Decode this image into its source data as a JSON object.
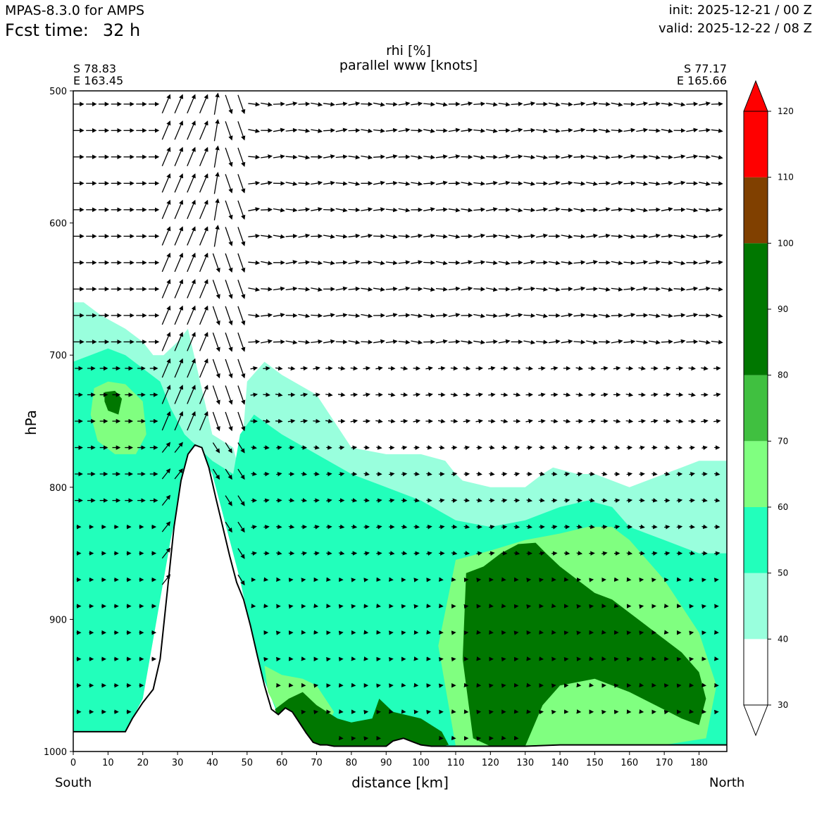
{
  "header": {
    "model": "MPAS-8.3.0 for AMPS",
    "fcst_label": "Fcst time:",
    "fcst_value": "32 h",
    "init": "init: 2025-12-21 / 00 Z",
    "valid": "valid: 2025-12-22 / 08 Z"
  },
  "cross_section": {
    "left_lat": "S 78.83",
    "left_lon": "E 163.45",
    "right_lat": "S 77.17",
    "right_lon": "E 165.66",
    "left_end": "South",
    "right_end": "North"
  },
  "chart_data": {
    "type": "heatmap",
    "title": "rhi [%]",
    "subtitle": "parallel www [knots]",
    "xlabel": "distance [km]",
    "ylabel": "hPa",
    "xlim": [
      0,
      188
    ],
    "ylim": [
      1000,
      500
    ],
    "x_ticks": [
      0,
      10,
      20,
      30,
      40,
      50,
      60,
      70,
      80,
      90,
      100,
      110,
      120,
      130,
      140,
      150,
      160,
      170,
      180
    ],
    "y_ticks": [
      500,
      600,
      700,
      800,
      900,
      1000
    ],
    "colorbar": {
      "ticks": [
        30,
        40,
        50,
        60,
        70,
        80,
        90,
        100,
        110,
        120
      ],
      "levels": [
        {
          "from": 30,
          "to": 40,
          "color": "#ffffff"
        },
        {
          "from": 40,
          "to": 50,
          "color": "#99ffdd"
        },
        {
          "from": 50,
          "to": 60,
          "color": "#22ffbb"
        },
        {
          "from": 60,
          "to": 70,
          "color": "#80ff80"
        },
        {
          "from": 70,
          "to": 80,
          "color": "#40c040"
        },
        {
          "from": 80,
          "to": 100,
          "color": "#007700"
        },
        {
          "from": 100,
          "to": 110,
          "color": "#804000"
        },
        {
          "from": 110,
          "to": 120,
          "color": "#ff0000"
        }
      ]
    },
    "terrain": {
      "x": [
        0,
        15,
        17,
        20,
        23,
        25,
        27,
        29,
        31,
        33,
        35,
        37,
        39,
        41,
        43,
        45,
        47,
        49,
        51,
        53,
        55,
        57,
        59,
        61,
        63,
        65,
        67,
        69,
        71,
        73,
        75,
        90,
        92,
        95,
        98,
        100,
        103,
        110,
        120,
        130,
        140,
        150,
        160,
        170,
        180,
        188
      ],
      "p": [
        985,
        985,
        975,
        963,
        953,
        930,
        880,
        830,
        795,
        775,
        768,
        770,
        785,
        808,
        830,
        852,
        872,
        885,
        905,
        928,
        950,
        968,
        972,
        967,
        970,
        978,
        986,
        993,
        995,
        995,
        996,
        996,
        992,
        990,
        993,
        995,
        996,
        996,
        996,
        996,
        995,
        995,
        995,
        995,
        995,
        995
      ]
    },
    "rhi_regions": [
      {
        "level": 40,
        "x": [
          0,
          3,
          8,
          15,
          20,
          23,
          26,
          30,
          33,
          40,
          46,
          48,
          50,
          55,
          60,
          70,
          80,
          90,
          100,
          107,
          110,
          112,
          120,
          130,
          135,
          138,
          145,
          150,
          155,
          160,
          165,
          170,
          175,
          180,
          188,
          188,
          180,
          160,
          140,
          120,
          110,
          100,
          90,
          80,
          70,
          60,
          52,
          48,
          40,
          36,
          32,
          28,
          24,
          20,
          15,
          10,
          5,
          0
        ],
        "p": [
          660,
          660,
          670,
          680,
          690,
          700,
          700,
          690,
          680,
          760,
          770,
          790,
          720,
          705,
          715,
          730,
          770,
          775,
          775,
          780,
          790,
          795,
          800,
          800,
          790,
          785,
          790,
          790,
          795,
          800,
          795,
          790,
          785,
          780,
          780,
          995,
          995,
          995,
          995,
          996,
          996,
          996,
          996,
          996,
          995,
          975,
          930,
          870,
          790,
          770,
          780,
          820,
          900,
          960,
          985,
          985,
          985,
          985
        ]
      },
      {
        "level": 50,
        "x": [
          0,
          5,
          10,
          15,
          20,
          25,
          28,
          32,
          40,
          46,
          48,
          52,
          60,
          70,
          80,
          90,
          100,
          110,
          120,
          130,
          140,
          148,
          155,
          160,
          165,
          170,
          175,
          180,
          188,
          188,
          180,
          160,
          140,
          120,
          110,
          100,
          90,
          80,
          70,
          60,
          54,
          48,
          40,
          36,
          32,
          28,
          24,
          20,
          15,
          10,
          5,
          0
        ],
        "p": [
          705,
          700,
          695,
          700,
          710,
          720,
          740,
          760,
          780,
          790,
          760,
          745,
          760,
          775,
          790,
          800,
          810,
          825,
          830,
          825,
          815,
          810,
          815,
          830,
          835,
          840,
          845,
          850,
          850,
          995,
          995,
          995,
          995,
          996,
          996,
          996,
          996,
          996,
          995,
          980,
          940,
          870,
          790,
          770,
          790,
          840,
          900,
          960,
          985,
          985,
          985,
          985
        ]
      },
      {
        "level": 60,
        "x": [
          110,
          120,
          130,
          140,
          148,
          155,
          160,
          165,
          170,
          175,
          180,
          185,
          182,
          170,
          160,
          150,
          140,
          130,
          120,
          110,
          105
        ],
        "p": [
          855,
          848,
          840,
          835,
          830,
          830,
          840,
          855,
          870,
          890,
          910,
          950,
          990,
          995,
          995,
          995,
          995,
          996,
          996,
          996,
          920
        ]
      },
      {
        "level": 60,
        "x": [
          6,
          10,
          15,
          20,
          21,
          18,
          12,
          7,
          5
        ],
        "p": [
          725,
          720,
          722,
          735,
          760,
          775,
          775,
          765,
          745
        ]
      },
      {
        "level": 60,
        "x": [
          55,
          60,
          66,
          70,
          75,
          72,
          68,
          64,
          60,
          56
        ],
        "p": [
          935,
          942,
          945,
          950,
          970,
          985,
          990,
          985,
          975,
          955
        ]
      },
      {
        "level": 80,
        "x": [
          113,
          118,
          123,
          128,
          133,
          136,
          140,
          145,
          150,
          155,
          160,
          165,
          170,
          175,
          180,
          182,
          180,
          175,
          160,
          150,
          140,
          135,
          130,
          125,
          120,
          115,
          112
        ],
        "p": [
          865,
          860,
          850,
          843,
          842,
          850,
          860,
          870,
          880,
          885,
          895,
          905,
          915,
          925,
          940,
          960,
          980,
          975,
          955,
          945,
          950,
          965,
          996,
          996,
          996,
          990,
          930
        ]
      },
      {
        "level": 80,
        "x": [
          58,
          62,
          66,
          70,
          76,
          80,
          86,
          88,
          92,
          100,
          106,
          108,
          106,
          100,
          92,
          86,
          80,
          74,
          70,
          66,
          62,
          59
        ],
        "p": [
          968,
          960,
          955,
          965,
          975,
          978,
          975,
          960,
          970,
          975,
          985,
          995,
          996,
          996,
          996,
          996,
          996,
          996,
          995,
          992,
          985,
          975
        ]
      },
      {
        "level": 80,
        "x": [
          9,
          12,
          14,
          13,
          10,
          9
        ],
        "p": [
          728,
          727,
          733,
          745,
          742,
          735
        ]
      }
    ],
    "wind_field": "parallel wind arrows on pressure levels every 20 hPa; strong steep vectors over the ridge near 25-48 km"
  }
}
